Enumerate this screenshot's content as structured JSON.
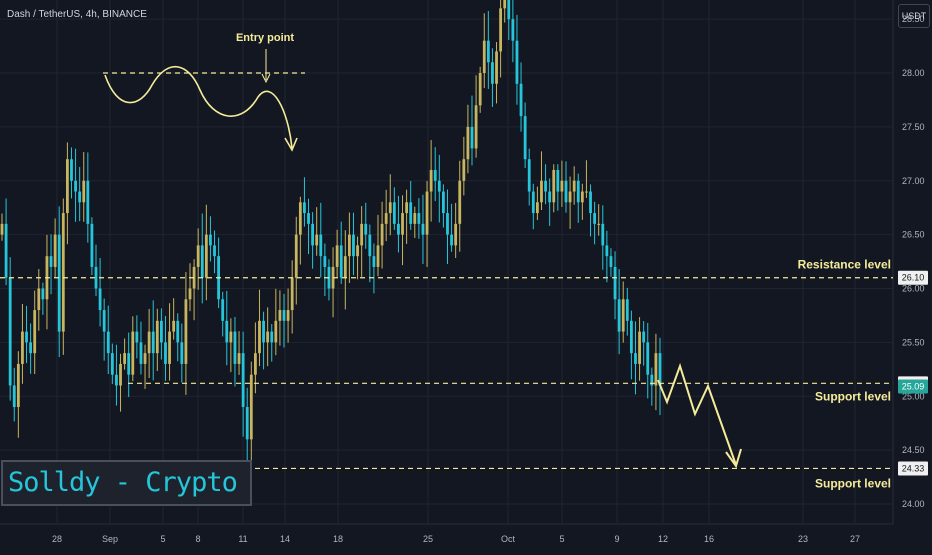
{
  "symbol": "Dash / TetherUS, 4h, BINANCE",
  "unit": "USDT",
  "watermark": "Solldy - Crypto for U",
  "colors": {
    "background": "#131722",
    "up_candle": "#c8b560",
    "down_candle": "#26c6da",
    "annotation": "#f5ec9a",
    "grid": "#1f2430"
  },
  "annotations": {
    "entry_point": "Entry point",
    "resistance": "Resistance level",
    "support_1": "Support level",
    "support_2": "Support level"
  },
  "chart_data": {
    "type": "candlestick",
    "title": "",
    "xlabel": "",
    "ylabel": "",
    "x_ticks": [
      "28",
      "Sep",
      "5",
      "8",
      "11",
      "14",
      "18",
      "25",
      "Oct",
      "5",
      "9",
      "12",
      "16",
      "23",
      "27"
    ],
    "y_ticks": [
      "24.00",
      "24.50",
      "25.00",
      "25.50",
      "26.00",
      "26.50",
      "27.00",
      "27.50",
      "28.00",
      "28.50"
    ],
    "ylim": [
      23.7,
      28.7
    ],
    "price_labels": [
      {
        "value": 26.1,
        "label": "26.10"
      },
      {
        "value": 25.12,
        "label": "25.12"
      },
      {
        "value": 25.09,
        "label": "25.09"
      },
      {
        "value": 24.33,
        "label": "24.33"
      }
    ],
    "levels": [
      {
        "name": "Resistance level",
        "value": 26.1
      },
      {
        "name": "Support level",
        "value": 25.12
      },
      {
        "name": "Support level",
        "value": 24.33
      }
    ],
    "entry_line": 28.0,
    "close_series": [
      26.6,
      26.1,
      25.1,
      24.9,
      25.3,
      25.6,
      25.5,
      25.4,
      25.8,
      26.0,
      25.9,
      26.3,
      26.2,
      26.5,
      25.6,
      26.7,
      27.2,
      27.0,
      26.9,
      26.8,
      27.0,
      26.6,
      26.2,
      26.0,
      25.8,
      25.6,
      25.4,
      25.2,
      25.1,
      25.3,
      25.4,
      25.2,
      25.6,
      25.5,
      25.3,
      25.4,
      25.6,
      25.4,
      25.7,
      25.5,
      25.3,
      25.6,
      25.7,
      25.5,
      25.3,
      25.9,
      26.0,
      26.2,
      26.4,
      26.1,
      26.5,
      26.4,
      26.3,
      25.9,
      25.7,
      25.5,
      25.6,
      25.3,
      25.4,
      24.9,
      24.6,
      25.2,
      25.4,
      25.7,
      25.5,
      25.6,
      25.5,
      25.7,
      25.8,
      25.7,
      25.8,
      26.1,
      26.5,
      26.8,
      26.7,
      26.6,
      26.4,
      26.5,
      26.3,
      26.2,
      26.0,
      26.2,
      26.4,
      26.1,
      26.3,
      26.5,
      26.3,
      26.4,
      26.6,
      26.5,
      26.3,
      26.2,
      26.4,
      26.6,
      26.7,
      26.8,
      26.6,
      26.5,
      26.7,
      26.8,
      26.6,
      26.7,
      26.6,
      26.5,
      26.9,
      27.1,
      27.0,
      26.9,
      26.7,
      26.5,
      26.4,
      26.6,
      27.0,
      27.2,
      27.5,
      27.3,
      27.7,
      28.0,
      28.3,
      28.1,
      27.9,
      28.2,
      28.6,
      28.9,
      28.5,
      28.3,
      27.9,
      27.6,
      27.2,
      26.9,
      26.7,
      26.8,
      27.0,
      26.9,
      26.8,
      27.1,
      26.9,
      27.0,
      26.8,
      26.9,
      27.0,
      26.8,
      26.9,
      26.9,
      26.7,
      26.6,
      26.6,
      26.4,
      26.3,
      26.2,
      25.9,
      25.6,
      25.9,
      25.7,
      25.4,
      25.3,
      25.6,
      25.5,
      25.2,
      25.1,
      25.4,
      25.1
    ]
  }
}
